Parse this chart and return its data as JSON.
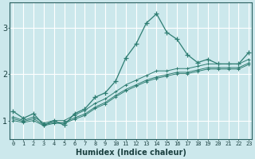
{
  "xlabel": "Humidex (Indice chaleur)",
  "background_color": "#cce8ec",
  "grid_color": "#ffffff",
  "line_color": "#2e7d72",
  "x_ticks": [
    0,
    1,
    2,
    3,
    4,
    5,
    6,
    7,
    8,
    9,
    10,
    11,
    12,
    13,
    14,
    15,
    16,
    17,
    18,
    19,
    20,
    21,
    22,
    23
  ],
  "y_ticks": [
    1,
    2,
    3
  ],
  "ylim": [
    0.6,
    3.55
  ],
  "xlim": [
    -0.3,
    23.3
  ],
  "series1_y": [
    1.2,
    1.05,
    1.15,
    0.9,
    1.0,
    0.9,
    1.15,
    1.25,
    1.5,
    1.6,
    1.85,
    2.35,
    2.65,
    3.1,
    3.3,
    2.9,
    2.75,
    2.42,
    2.25,
    2.32,
    2.22,
    2.22,
    2.22,
    2.47
  ],
  "series2_y": [
    1.08,
    1.0,
    1.08,
    0.95,
    1.0,
    1.0,
    1.12,
    1.22,
    1.37,
    1.47,
    1.62,
    1.77,
    1.87,
    1.97,
    2.07,
    2.07,
    2.12,
    2.12,
    2.17,
    2.22,
    2.22,
    2.22,
    2.22,
    2.32
  ],
  "series3_y": [
    1.04,
    0.98,
    1.04,
    0.91,
    0.96,
    0.96,
    1.06,
    1.14,
    1.29,
    1.39,
    1.54,
    1.67,
    1.77,
    1.87,
    1.94,
    1.99,
    2.04,
    2.04,
    2.09,
    2.14,
    2.14,
    2.14,
    2.14,
    2.24
  ],
  "series4_y": [
    1.0,
    0.96,
    1.0,
    0.89,
    0.94,
    0.94,
    1.03,
    1.11,
    1.26,
    1.36,
    1.51,
    1.64,
    1.74,
    1.84,
    1.91,
    1.96,
    2.01,
    2.01,
    2.06,
    2.11,
    2.11,
    2.11,
    2.11,
    2.21
  ]
}
